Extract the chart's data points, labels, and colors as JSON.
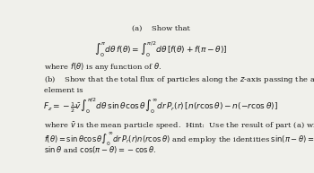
{
  "background_color": "#f0f0eb",
  "text_color": "#1a1a1a",
  "title_a": "(a)    Show that",
  "eq1": "$\\int_0^{\\pi} d\\theta\\, f(\\theta) = \\int_0^{\\pi/2} d\\theta\\, [f(\\theta) + f(\\pi - \\theta)]$",
  "line2": "where $f(\\theta)$ is any function of $\\theta$.",
  "line3b": "(b)    Show that the total flux of particles along the $z$-axis passing the area",
  "line4": "element is",
  "eq2": "$F_z = -\\frac{1}{2}\\bar{v} \\int_0^{\\pi/2} d\\theta\\, \\sin\\theta \\cos\\theta \\int_0^{\\infty} dr\\, P_r(r)\\,[n(r\\cos\\theta) - n(-r\\cos\\theta)]$",
  "line5": "where $\\bar{v}$ is the mean particle speed.  Hint:  Use the result of part (a) with",
  "line6": "$f(\\theta) = \\sin\\theta \\cos\\theta \\int_0^{\\infty} dr\\, P_r(r)n(r\\cos\\theta)$ and employ the identities $\\sin(\\pi-\\theta) =$",
  "line7": "$\\sin\\theta$ and $\\cos(\\pi - \\theta) = -\\cos\\theta$."
}
